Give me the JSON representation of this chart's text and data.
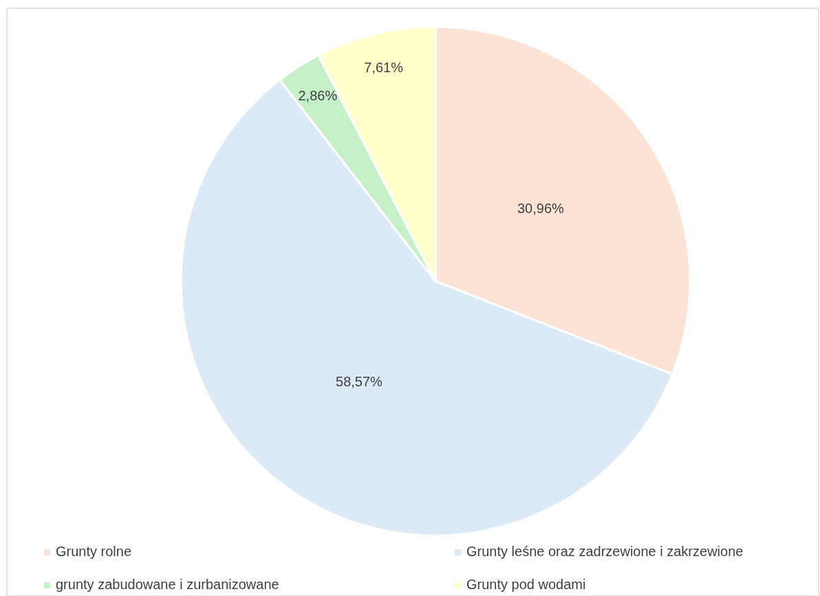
{
  "chart_data": {
    "type": "pie",
    "categories": [
      "Grunty rolne",
      "Grunty leśne oraz zadrzewione i zakrzewione",
      "grunty zabudowane i zurbanizowane",
      "Grunty pod wodami"
    ],
    "values": [
      30.96,
      58.57,
      2.86,
      7.61
    ],
    "value_labels": [
      "30,96%",
      "58,57%",
      "2,86%",
      "7,61%"
    ],
    "colors": [
      "#fbe3d6",
      "#dce9f6",
      "#c5f0c8",
      "#ffffcc"
    ],
    "legend": "bottom"
  }
}
